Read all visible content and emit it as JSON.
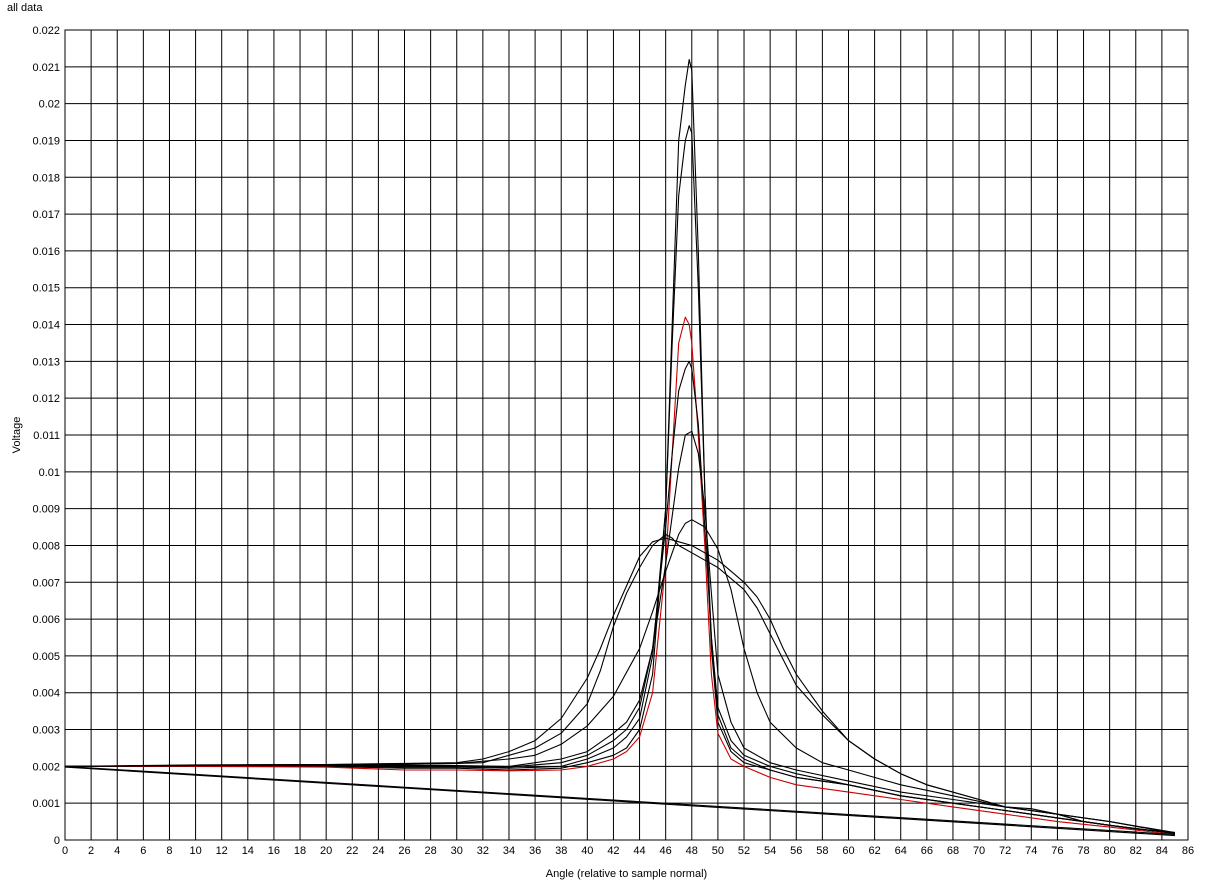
{
  "chart_data": {
    "type": "line",
    "title": "all data",
    "xlabel": "Angle (relative to sample normal)",
    "ylabel": "Voltage",
    "xlim": [
      0,
      86
    ],
    "ylim": [
      0,
      0.022
    ],
    "grid": true,
    "xticks": [
      "0",
      "2",
      "4",
      "6",
      "8",
      "10",
      "12",
      "14",
      "16",
      "18",
      "20",
      "22",
      "24",
      "26",
      "28",
      "30",
      "32",
      "34",
      "36",
      "38",
      "40",
      "42",
      "44",
      "46",
      "48",
      "50",
      "52",
      "54",
      "56",
      "58",
      "60",
      "62",
      "64",
      "66",
      "68",
      "70",
      "72",
      "74",
      "76",
      "78",
      "80",
      "82",
      "84",
      "86"
    ],
    "yticks": [
      "0",
      "0.001",
      "0.002",
      "0.003",
      "0.004",
      "0.005",
      "0.006",
      "0.007",
      "0.008",
      "0.009",
      "0.01",
      "0.011",
      "0.012",
      "0.013",
      "0.014",
      "0.015",
      "0.016",
      "0.017",
      "0.018",
      "0.019",
      "0.02",
      "0.021",
      "0.022"
    ],
    "series": [
      {
        "color": "#000000",
        "x": [
          0,
          10,
          20,
          26,
          30,
          34,
          38,
          40,
          42,
          43,
          44,
          45,
          46,
          46.5,
          47,
          47.5,
          47.8,
          48,
          48.5,
          49,
          49.5,
          50,
          51,
          52,
          54,
          56,
          60,
          64,
          68,
          72,
          76,
          80,
          85
        ],
        "y": [
          0.002,
          0.00202,
          0.002,
          0.00195,
          0.00195,
          0.0019,
          0.00195,
          0.0021,
          0.0023,
          0.0025,
          0.003,
          0.0045,
          0.009,
          0.014,
          0.019,
          0.0205,
          0.0212,
          0.0209,
          0.016,
          0.0095,
          0.0052,
          0.0032,
          0.0024,
          0.0021,
          0.0019,
          0.0017,
          0.0015,
          0.0012,
          0.001,
          0.0008,
          0.0006,
          0.0004,
          0.00018
        ]
      },
      {
        "color": "#000000",
        "x": [
          0,
          10,
          20,
          26,
          30,
          34,
          38,
          40,
          42,
          43,
          44,
          45,
          46,
          46.5,
          47,
          47.5,
          47.8,
          48,
          48.5,
          49,
          49.5,
          50,
          51,
          52,
          54,
          56,
          60,
          64,
          68,
          72,
          76,
          80,
          85
        ],
        "y": [
          0.002,
          0.00202,
          0.00202,
          0.00198,
          0.00198,
          0.00195,
          0.002,
          0.0022,
          0.0025,
          0.0028,
          0.0033,
          0.005,
          0.009,
          0.0135,
          0.0175,
          0.019,
          0.0194,
          0.0192,
          0.015,
          0.0095,
          0.0055,
          0.0034,
          0.0025,
          0.0022,
          0.0019,
          0.0017,
          0.0015,
          0.0012,
          0.001,
          0.0008,
          0.0006,
          0.0004,
          0.00018
        ]
      },
      {
        "color": "#cc0000",
        "x": [
          0,
          10,
          20,
          26,
          30,
          34,
          38,
          40,
          42,
          43,
          44,
          45,
          46,
          46.5,
          47,
          47.5,
          47.8,
          48,
          48.5,
          49,
          49.5,
          50,
          51,
          52,
          54,
          56,
          60,
          64,
          68,
          72,
          76,
          80,
          85
        ],
        "y": [
          0.002,
          0.002,
          0.00198,
          0.0019,
          0.0019,
          0.00188,
          0.0019,
          0.002,
          0.0022,
          0.0024,
          0.0028,
          0.004,
          0.0075,
          0.0105,
          0.0135,
          0.0142,
          0.014,
          0.0135,
          0.011,
          0.008,
          0.0045,
          0.0029,
          0.0022,
          0.002,
          0.0017,
          0.0015,
          0.0013,
          0.0011,
          0.0009,
          0.0007,
          0.0005,
          0.00035,
          0.00015
        ]
      },
      {
        "color": "#000000",
        "x": [
          0,
          10,
          20,
          26,
          30,
          34,
          38,
          40,
          42,
          43,
          44,
          45,
          46,
          46.5,
          47,
          47.5,
          47.8,
          48,
          48.5,
          49,
          49.5,
          50,
          51,
          52,
          54,
          56,
          60,
          64,
          68,
          72,
          76,
          80,
          85
        ],
        "y": [
          0.002,
          0.00202,
          0.00202,
          0.002,
          0.002,
          0.00198,
          0.0021,
          0.0023,
          0.0027,
          0.003,
          0.0036,
          0.0052,
          0.0085,
          0.0105,
          0.0122,
          0.0128,
          0.013,
          0.0128,
          0.0113,
          0.0085,
          0.0055,
          0.0036,
          0.0027,
          0.0023,
          0.002,
          0.0018,
          0.0015,
          0.0012,
          0.001,
          0.0008,
          0.0006,
          0.0004,
          0.00018
        ]
      },
      {
        "color": "#000000",
        "x": [
          0,
          10,
          20,
          26,
          30,
          34,
          38,
          40,
          42,
          43,
          44,
          45,
          46,
          46.5,
          47,
          47.5,
          48,
          48.5,
          49,
          49.5,
          50,
          51,
          52,
          54,
          56,
          60,
          64,
          68,
          72,
          76,
          80,
          85
        ],
        "y": [
          0.002,
          0.00202,
          0.00203,
          0.00202,
          0.00202,
          0.002,
          0.0022,
          0.0024,
          0.0029,
          0.0032,
          0.0038,
          0.0052,
          0.0075,
          0.0088,
          0.0101,
          0.011,
          0.0111,
          0.0105,
          0.009,
          0.0067,
          0.0045,
          0.0032,
          0.0025,
          0.0021,
          0.0019,
          0.0016,
          0.0013,
          0.0011,
          0.0009,
          0.0007,
          0.0005,
          0.00018
        ]
      },
      {
        "color": "#000000",
        "x": [
          0,
          10,
          20,
          26,
          30,
          34,
          36,
          38,
          40,
          42,
          44,
          45,
          46,
          47,
          47.5,
          48,
          49,
          50,
          51,
          52,
          53,
          54,
          56,
          58,
          60,
          64,
          68,
          72,
          76,
          80,
          85
        ],
        "y": [
          0.002,
          0.00203,
          0.00204,
          0.00205,
          0.00208,
          0.0022,
          0.0023,
          0.0026,
          0.0031,
          0.0039,
          0.0052,
          0.0062,
          0.0073,
          0.0083,
          0.0086,
          0.0087,
          0.0085,
          0.0079,
          0.0068,
          0.0052,
          0.004,
          0.0032,
          0.0025,
          0.0021,
          0.0019,
          0.0015,
          0.0012,
          0.0009,
          0.0007,
          0.0005,
          0.0002
        ]
      },
      {
        "color": "#000000",
        "x": [
          0,
          10,
          20,
          26,
          30,
          32,
          34,
          36,
          38,
          40,
          41,
          42,
          43,
          44,
          45,
          46,
          47,
          48,
          49,
          50,
          51,
          52,
          53,
          54,
          55,
          56,
          58,
          60,
          62,
          64,
          66,
          68,
          70,
          72,
          74,
          76,
          78,
          80,
          82,
          85
        ],
        "y": [
          0.002,
          0.00204,
          0.00205,
          0.00208,
          0.0021,
          0.0022,
          0.0024,
          0.0027,
          0.0033,
          0.0044,
          0.0052,
          0.0061,
          0.0069,
          0.0077,
          0.0081,
          0.0082,
          0.0081,
          0.008,
          0.0078,
          0.0076,
          0.0073,
          0.007,
          0.0066,
          0.006,
          0.0052,
          0.0045,
          0.0035,
          0.0027,
          0.0022,
          0.0018,
          0.0015,
          0.0013,
          0.0011,
          0.0009,
          0.00085,
          0.0007,
          0.0005,
          0.0004,
          0.0003,
          0.0002
        ]
      },
      {
        "color": "#000000",
        "x": [
          0,
          10,
          20,
          26,
          30,
          32,
          34,
          36,
          38,
          40,
          41,
          42,
          43,
          44,
          45,
          46,
          46.5,
          47,
          48,
          49,
          50,
          51,
          52,
          53,
          54,
          55,
          56,
          58,
          60,
          62,
          64,
          66,
          68,
          70,
          72,
          74,
          76,
          78,
          80,
          82,
          85
        ],
        "y": [
          0.002,
          0.00203,
          0.00205,
          0.00206,
          0.00208,
          0.0021,
          0.0023,
          0.0025,
          0.0029,
          0.0037,
          0.0046,
          0.0058,
          0.0067,
          0.0074,
          0.008,
          0.0083,
          0.0082,
          0.008,
          0.0078,
          0.0076,
          0.0074,
          0.0071,
          0.0068,
          0.0063,
          0.0056,
          0.0049,
          0.0042,
          0.0034,
          0.0027,
          0.0022,
          0.0018,
          0.0015,
          0.0013,
          0.0011,
          0.0009,
          0.0008,
          0.0007,
          0.0005,
          0.0004,
          0.0003,
          0.0002
        ]
      },
      {
        "color": "#000000",
        "x": [
          0,
          85
        ],
        "y": [
          0.002,
          0.00015
        ]
      },
      {
        "color": "#000000",
        "x": [
          0,
          85
        ],
        "y": [
          0.00198,
          0.00012
        ]
      }
    ]
  }
}
